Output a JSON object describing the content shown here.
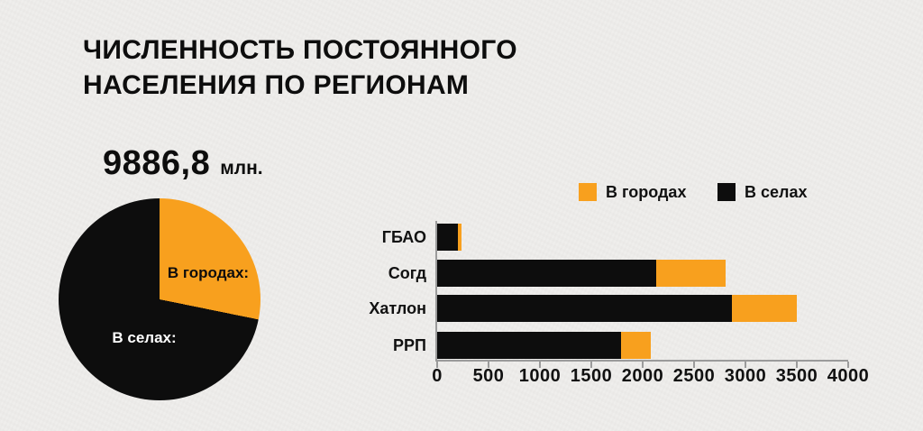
{
  "page": {
    "background": "#EFEEEC"
  },
  "header": {
    "title_line1": "ЧИСЛЕННОСТЬ ПОСТОЯННОГО",
    "title_line2": "НАСЕЛЕНИЯ ПО РЕГИОНАМ"
  },
  "colors": {
    "orange": "#F8A01E",
    "black": "#0D0D0D",
    "axis": "#9B9B9B",
    "background": "#EFEEEC"
  },
  "pie": {
    "total_value": "9886,8",
    "total_unit": "млн.",
    "slices": [
      {
        "label": "В городах:",
        "color": "#F8A01E",
        "percent": 28.2
      },
      {
        "label": "В селах:",
        "color": "#0D0D0D",
        "percent": 71.8
      }
    ]
  },
  "chart_data": {
    "type": "bar",
    "orientation": "horizontal",
    "stacked": true,
    "title": "",
    "categories": [
      "ГБАО",
      "Согд",
      "Хатлон",
      "РРП"
    ],
    "series": [
      {
        "name": "В селах",
        "color": "#0D0D0D",
        "values": [
          200,
          2130,
          2870,
          1790
        ]
      },
      {
        "name": "В городах",
        "color": "#F8A01E",
        "values": [
          40,
          680,
          630,
          290
        ]
      }
    ],
    "totals": [
      240,
      2810,
      3500,
      2080
    ],
    "xlim": [
      0,
      4000
    ],
    "xticks": [
      0,
      500,
      1000,
      1500,
      2000,
      2500,
      3000,
      3500,
      4000
    ],
    "grid": false,
    "legend": {
      "position": "top",
      "items": [
        {
          "label": "В городах",
          "color": "#F8A01E"
        },
        {
          "label": "В селах",
          "color": "#0D0D0D"
        }
      ]
    }
  }
}
